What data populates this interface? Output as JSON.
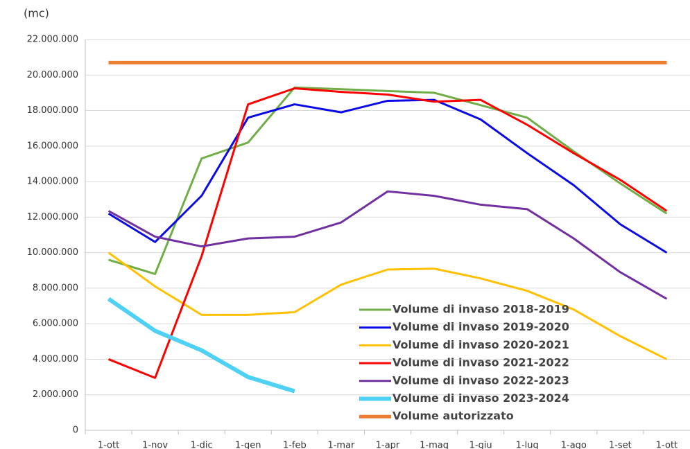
{
  "chart_data": {
    "type": "line",
    "y_label": "(mc)",
    "categories": [
      "1-ott",
      "1-nov",
      "1-dic",
      "1-gen",
      "1-feb",
      "1-mar",
      "1-apr",
      "1-mag",
      "1-giu",
      "1-lug",
      "1-ago",
      "1-set",
      "1-ott"
    ],
    "series": [
      {
        "name": "Volume di invaso 2018-2019",
        "color": "#70ad47",
        "width": 3,
        "values": [
          9600000,
          8800000,
          15300000,
          16200000,
          19300000,
          19200000,
          19100000,
          19000000,
          18300000,
          17600000,
          15700000,
          13900000,
          12200000
        ]
      },
      {
        "name": "Volume di invaso 2019-2020",
        "color": "#0a0ae6",
        "width": 3,
        "values": [
          12200000,
          10600000,
          13200000,
          17600000,
          18350000,
          17900000,
          18550000,
          18600000,
          17500000,
          15600000,
          13800000,
          11600000,
          10000000
        ]
      },
      {
        "name": "Volume di invaso 2020-2021",
        "color": "#ffc000",
        "width": 3,
        "values": [
          10000000,
          8100000,
          6500000,
          6500000,
          6650000,
          8200000,
          9050000,
          9100000,
          8550000,
          7850000,
          6800000,
          5300000,
          4000000
        ]
      },
      {
        "name": "Volume di invaso 2021-2022",
        "color": "#ff0000",
        "width": 3,
        "values": [
          4000000,
          2950000,
          9800000,
          18350000,
          19250000,
          19050000,
          18900000,
          18500000,
          18600000,
          17200000,
          15600000,
          14100000,
          12350000
        ]
      },
      {
        "name": "Volume di invaso 2022-2023",
        "color": "#7030a0",
        "width": 3,
        "values": [
          12350000,
          10900000,
          10350000,
          10800000,
          10900000,
          11700000,
          13450000,
          13200000,
          12700000,
          12450000,
          10800000,
          8900000,
          7400000
        ]
      },
      {
        "name": "Volume di invaso 2023-2024",
        "color": "#4fd0f5",
        "width": 6,
        "values": [
          7400000,
          5600000,
          4500000,
          3000000,
          2200000,
          null,
          null,
          null,
          null,
          null,
          null,
          null,
          null
        ]
      },
      {
        "name": "Volume autorizzato",
        "color": "#ed7d31",
        "width": 5,
        "values": [
          20700000,
          20700000,
          20700000,
          20700000,
          20700000,
          20700000,
          20700000,
          20700000,
          20700000,
          20700000,
          20700000,
          20700000,
          20700000
        ]
      }
    ],
    "ylim": [
      0,
      22000000
    ],
    "yticks": [
      0,
      {
        "value": 2000000,
        "label": "2.000.000"
      },
      {
        "value": 4000000,
        "label": "4.000.000"
      },
      {
        "value": 6000000,
        "label": "6.000.000"
      },
      {
        "value": 8000000,
        "label": "8.000.000"
      },
      {
        "value": 10000000,
        "label": "10.000.000"
      },
      {
        "value": 12000000,
        "label": "12.000.000"
      },
      {
        "value": 14000000,
        "label": "14.000.000"
      },
      {
        "value": 16000000,
        "label": "16.000.000"
      },
      {
        "value": 18000000,
        "label": "18.000.000"
      },
      {
        "value": 20000000,
        "label": "20.000.000"
      },
      {
        "value": 22000000,
        "label": "22.000.000"
      }
    ],
    "grid": true,
    "legend": "lower right"
  }
}
